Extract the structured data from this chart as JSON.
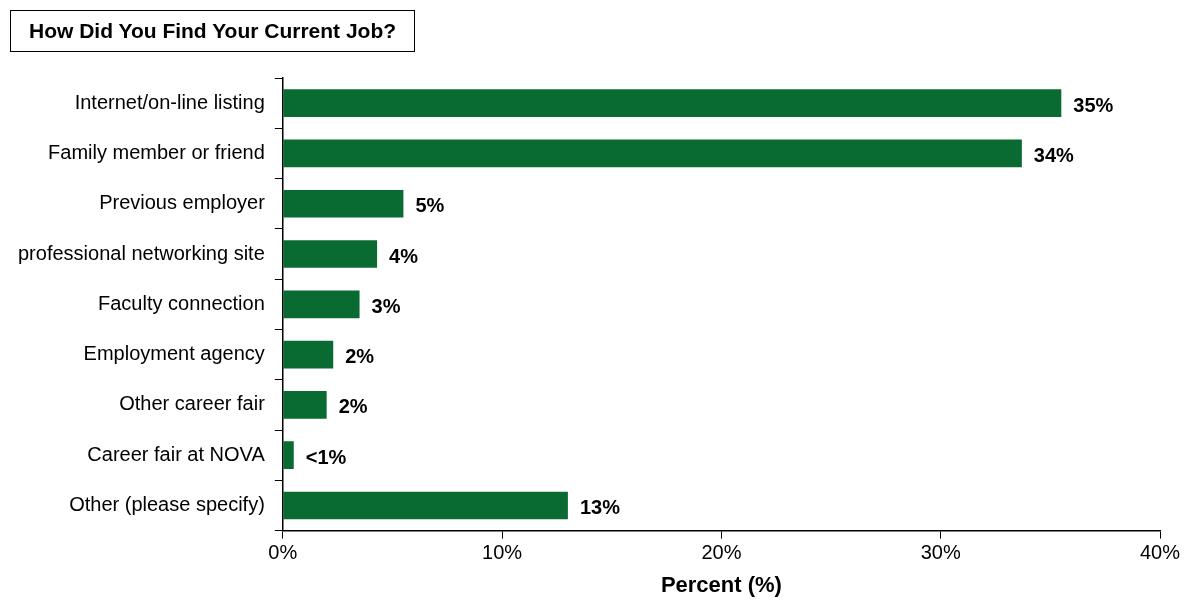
{
  "chart_data": {
    "type": "bar",
    "orientation": "horizontal",
    "title": "How Did You Find Your Current Job?",
    "xlabel": "Percent (%)",
    "categories": [
      "Internet/on-line listing",
      "Family member or friend",
      "Previous employer",
      "professional networking site",
      "Faculty connection",
      "Employment agency",
      "Other career fair",
      "Career fair at NOVA",
      "Other (please specify)"
    ],
    "values": [
      35.5,
      33.7,
      5.5,
      4.3,
      3.5,
      2.3,
      2.0,
      0.5,
      13.0
    ],
    "value_labels": [
      "35%",
      "34%",
      "5%",
      "4%",
      "3%",
      "2%",
      "2%",
      "<1%",
      "13%"
    ],
    "color": "#096b31",
    "xlim": [
      0,
      40
    ],
    "xticks": [
      {
        "value": 0,
        "label": "0%"
      },
      {
        "value": 10,
        "label": "10%"
      },
      {
        "value": 20,
        "label": "20%"
      },
      {
        "value": 30,
        "label": "30%"
      },
      {
        "value": 40,
        "label": "40%"
      }
    ],
    "grid": false,
    "legend": false
  }
}
